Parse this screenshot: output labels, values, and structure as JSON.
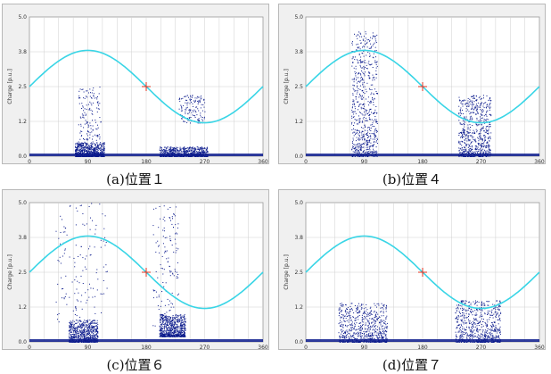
{
  "colors": {
    "background": "#ffffff",
    "plot_bg": "#ffffff",
    "grid": "#cfcfcf",
    "sine": "#39d5e6",
    "scatter": "#0a1a8c",
    "marker": "#e0301e"
  },
  "chart_data": [
    {
      "type": "scatter",
      "caption": "(a)位置１",
      "ylabel": "Charge [p.u.]",
      "xlabel": "",
      "x_ticks": [
        0,
        90,
        180,
        270,
        360
      ],
      "y_ticks": [
        "0.0",
        "1.2",
        "2.5",
        "3.8",
        "5.0"
      ],
      "xlim": [
        0,
        360
      ],
      "ylim": [
        0,
        5
      ],
      "grid": true,
      "marker_point": [
        180,
        2.5
      ],
      "clusters": [
        {
          "x": [
            70,
            115
          ],
          "y": [
            0,
            0.5
          ],
          "density": "dense"
        },
        {
          "x": [
            200,
            275
          ],
          "y": [
            0,
            0.35
          ],
          "density": "dense"
        },
        {
          "x": [
            75,
            110
          ],
          "y": [
            0.5,
            2.5
          ],
          "density": "sparse"
        },
        {
          "x": [
            230,
            270
          ],
          "y": [
            1.2,
            2.2
          ],
          "density": "sparse"
        }
      ]
    },
    {
      "type": "scatter",
      "caption": "(b)位置４",
      "ylabel": "Charge [p.u.]",
      "xlabel": "",
      "x_ticks": [
        0,
        90,
        180,
        270,
        360
      ],
      "y_ticks": [
        "0.0",
        "1.2",
        "2.5",
        "3.8",
        "5.0"
      ],
      "xlim": [
        0,
        360
      ],
      "ylim": [
        0,
        5
      ],
      "grid": true,
      "marker_point": [
        180,
        2.5
      ],
      "clusters": [
        {
          "x": [
            70,
            110
          ],
          "y": [
            0,
            4.5
          ],
          "density": "dense"
        },
        {
          "x": [
            235,
            285
          ],
          "y": [
            0,
            2.2
          ],
          "density": "dense"
        }
      ]
    },
    {
      "type": "scatter",
      "caption": "(c)位置６",
      "ylabel": "Charge [p.u.]",
      "xlabel": "",
      "x_ticks": [
        0,
        90,
        180,
        270,
        360
      ],
      "y_ticks": [
        "0.0",
        "1.2",
        "2.5",
        "3.8",
        "5.0"
      ],
      "xlim": [
        0,
        360
      ],
      "ylim": [
        0,
        5
      ],
      "grid": true,
      "marker_point": [
        180,
        2.5
      ],
      "clusters": [
        {
          "x": [
            60,
            105
          ],
          "y": [
            0,
            0.8
          ],
          "density": "dense"
        },
        {
          "x": [
            200,
            240
          ],
          "y": [
            0.2,
            1.0
          ],
          "density": "dense"
        },
        {
          "x": [
            40,
            120
          ],
          "y": [
            0.5,
            5.0
          ],
          "density": "sparse"
        },
        {
          "x": [
            190,
            230
          ],
          "y": [
            0.5,
            5.0
          ],
          "density": "sparse"
        }
      ]
    },
    {
      "type": "scatter",
      "caption": "(d)位置７",
      "ylabel": "Charge [p.u.]",
      "xlabel": "",
      "x_ticks": [
        0,
        90,
        180,
        270,
        360
      ],
      "y_ticks": [
        "0.0",
        "1.2",
        "2.5",
        "3.8",
        "5.0"
      ],
      "xlim": [
        0,
        360
      ],
      "ylim": [
        0,
        5
      ],
      "grid": true,
      "marker_point": [
        180,
        2.5
      ],
      "clusters": [
        {
          "x": [
            50,
            125
          ],
          "y": [
            0,
            1.4
          ],
          "density": "dense"
        },
        {
          "x": [
            230,
            300
          ],
          "y": [
            0,
            1.5
          ],
          "density": "dense"
        }
      ]
    }
  ]
}
